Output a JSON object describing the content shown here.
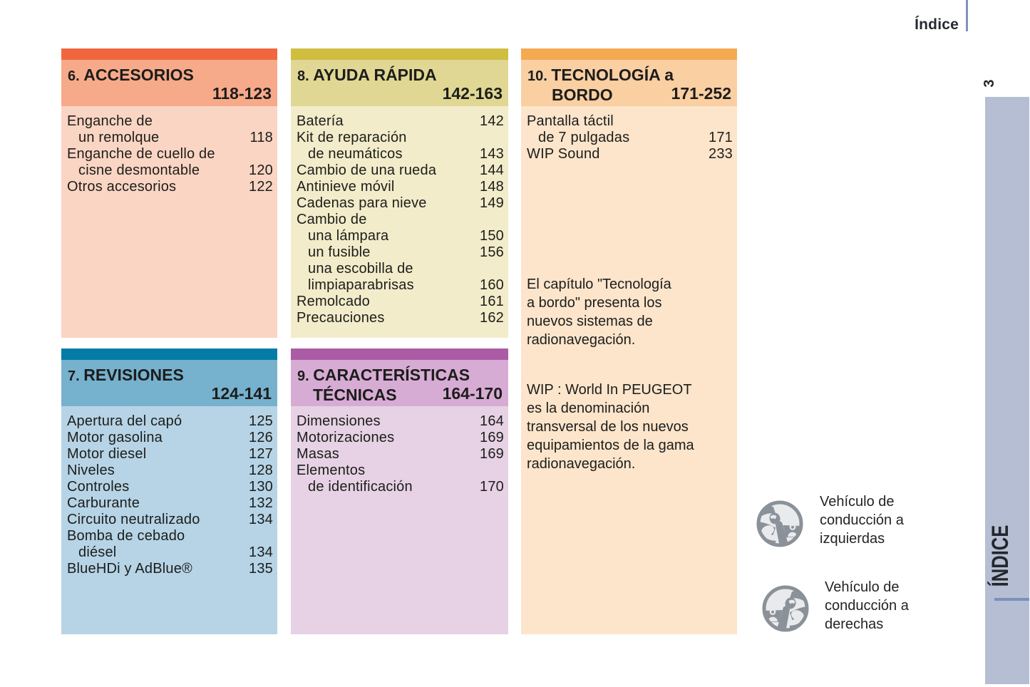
{
  "page": {
    "title": "Índice",
    "page_number": "3",
    "tab_label": "ÍNDICE"
  },
  "boxes": [
    {
      "id": "accesorios",
      "number": "6.",
      "title_lines": [
        "ACCESORIOS"
      ],
      "range": "118-123",
      "colors": {
        "strip": "#f0673e",
        "header": "#f7aa8a",
        "body": "#fad5c3"
      },
      "entries": [
        {
          "text": "Enganche de",
          "indent": false,
          "page": ""
        },
        {
          "text": "un remolque",
          "indent": true,
          "page": "118"
        },
        {
          "text": "Enganche de cuello de",
          "indent": false,
          "page": ""
        },
        {
          "text": "cisne desmontable",
          "indent": true,
          "page": "120"
        },
        {
          "text": "Otros accesorios",
          "indent": false,
          "page": "122"
        }
      ],
      "paragraphs": []
    },
    {
      "id": "revisiones",
      "number": "7.",
      "title_lines": [
        "REVISIONES"
      ],
      "range": "124-141",
      "colors": {
        "strip": "#047ca6",
        "header": "#76b1ce",
        "body": "#b6d4e6"
      },
      "entries": [
        {
          "text": "Apertura del capó",
          "indent": false,
          "page": "125"
        },
        {
          "text": "Motor gasolina",
          "indent": false,
          "page": "126"
        },
        {
          "text": "Motor diesel",
          "indent": false,
          "page": "127"
        },
        {
          "text": "Niveles",
          "indent": false,
          "page": "128"
        },
        {
          "text": "Controles",
          "indent": false,
          "page": "130"
        },
        {
          "text": "Carburante",
          "indent": false,
          "page": "132"
        },
        {
          "text": "Circuito neutralizado",
          "indent": false,
          "page": "134"
        },
        {
          "text": "Bomba de cebado",
          "indent": false,
          "page": ""
        },
        {
          "text": "diésel",
          "indent": true,
          "page": "134"
        },
        {
          "text": "BlueHDi y AdBlue®",
          "indent": false,
          "page": "135"
        }
      ],
      "paragraphs": []
    },
    {
      "id": "ayuda-rapida",
      "number": "8.",
      "title_lines": [
        "AYUDA RÁPIDA"
      ],
      "range": "142-163",
      "colors": {
        "strip": "#cfbe40",
        "header": "#e0d794",
        "body": "#f2ecca"
      },
      "entries": [
        {
          "text": "Batería",
          "indent": false,
          "page": "142"
        },
        {
          "text": "Kit de reparación",
          "indent": false,
          "page": ""
        },
        {
          "text": "de neumáticos",
          "indent": true,
          "page": "143"
        },
        {
          "text": "Cambio de una rueda",
          "indent": false,
          "page": "144"
        },
        {
          "text": "Antinieve móvil",
          "indent": false,
          "page": "148"
        },
        {
          "text": "Cadenas para nieve",
          "indent": false,
          "page": "149"
        },
        {
          "text": "Cambio de",
          "indent": false,
          "page": ""
        },
        {
          "text": "una lámpara",
          "indent": true,
          "page": "150"
        },
        {
          "text": "un fusible",
          "indent": true,
          "page": "156"
        },
        {
          "text": "una escobilla de",
          "indent": true,
          "page": ""
        },
        {
          "text": "limpiaparabrisas",
          "indent": true,
          "page": "160"
        },
        {
          "text": "Remolcado",
          "indent": false,
          "page": "161"
        },
        {
          "text": "Precauciones",
          "indent": false,
          "page": "162"
        }
      ],
      "paragraphs": []
    },
    {
      "id": "caracteristicas-tecnicas",
      "number": "9.",
      "title_lines": [
        "CARACTERÍSTICAS",
        "TÉCNICAS"
      ],
      "range": "164-170",
      "colors": {
        "strip": "#ac5ca4",
        "header": "#d7acd4",
        "body": "#e6d2e4"
      },
      "entries": [
        {
          "text": "Dimensiones",
          "indent": false,
          "page": "164"
        },
        {
          "text": "Motorizaciones",
          "indent": false,
          "page": "169"
        },
        {
          "text": "Masas",
          "indent": false,
          "page": "169"
        },
        {
          "text": "Elementos",
          "indent": false,
          "page": ""
        },
        {
          "text": "de identificación",
          "indent": true,
          "page": "170"
        }
      ],
      "paragraphs": []
    },
    {
      "id": "tecnologia-a-bordo",
      "number": "10.",
      "title_lines": [
        "TECNOLOGÍA a",
        "BORDO"
      ],
      "range": "171-252",
      "colors": {
        "strip": "#f5a951",
        "header": "#facfa2",
        "body": "#fce5cb"
      },
      "entries": [
        {
          "text": "Pantalla táctil",
          "indent": false,
          "page": ""
        },
        {
          "text": "de 7 pulgadas",
          "indent": true,
          "page": "171"
        },
        {
          "text": "WIP Sound",
          "indent": false,
          "page": "233"
        }
      ],
      "paragraphs": [
        {
          "lines": [
            "El capítulo \"Tecnología",
            "a bordo\" presenta los",
            "nuevos sistemas de",
            "radionavegación."
          ]
        },
        {
          "lines": [
            "WIP : World In PEUGEOT",
            "es la denominación",
            "transversal de los nuevos",
            "equipamientos de la gama",
            "radionavegación."
          ]
        }
      ]
    }
  ],
  "legend": [
    {
      "icon": "steering-wheel-left-hand-drive-icon",
      "lines": [
        "Vehículo de",
        "conducción a",
        "izquierdas"
      ]
    },
    {
      "icon": "steering-wheel-right-hand-drive-icon",
      "lines": [
        "Vehículo de",
        "conducción a",
        "derechas"
      ]
    }
  ],
  "colors": {
    "tab_background": "#b5bed3",
    "rule_blue": "#8193bc",
    "tab_rule_blue": "#7b90bb",
    "text": "#1d1d1b",
    "icon_gray": "#8a9198",
    "icon_fill": "#e8eaec"
  }
}
